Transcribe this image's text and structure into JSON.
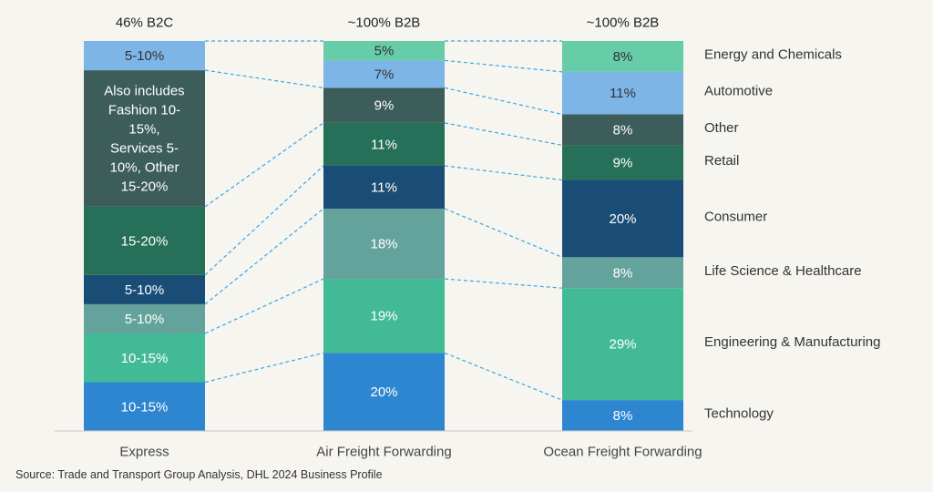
{
  "chart_data": {
    "type": "bar",
    "stacked": true,
    "categories": [
      "Express",
      "Air Freight Forwarding",
      "Ocean Freight Forwarding"
    ],
    "top_labels": [
      "46% B2C",
      "~100% B2B",
      "~100% B2B"
    ],
    "sectors": [
      {
        "name": "Technology",
        "color": "#2e86d0"
      },
      {
        "name": "Engineering & Manufacturing",
        "color": "#43ba96"
      },
      {
        "name": "Life Science & Healthcare",
        "color": "#64a39c"
      },
      {
        "name": "Consumer",
        "color": "#1a4d76"
      },
      {
        "name": "Retail",
        "color": "#266f58"
      },
      {
        "name": "Other",
        "color": "#3c5d5a"
      },
      {
        "name": "Automotive",
        "color": "#7db5e6"
      },
      {
        "name": "Energy and Chemicals",
        "color": "#67cda9"
      }
    ],
    "bars": [
      {
        "category": "Express",
        "segments": [
          {
            "sector": "Technology",
            "value": 12.5,
            "label": "10-15%",
            "label_lines": [
              "10-15%"
            ]
          },
          {
            "sector": "Engineering & Manufacturing",
            "value": 12.5,
            "label": "10-15%",
            "label_lines": [
              "10-15%"
            ]
          },
          {
            "sector": "Life Science & Healthcare",
            "value": 7.5,
            "label": "5-10%",
            "label_lines": [
              "5-10%"
            ]
          },
          {
            "sector": "Consumer",
            "value": 7.5,
            "label": "5-10%",
            "label_lines": [
              "5-10%"
            ]
          },
          {
            "sector": "Retail",
            "value": 17.5,
            "label": "15-20%",
            "label_lines": [
              "15-20%"
            ]
          },
          {
            "sector": "Other",
            "value": 35,
            "label": "Also includes Fashion 10-15%, Services 5-10%, Other 15-20%",
            "label_lines": [
              "Also includes",
              "Fashion 10-",
              "15%,",
              "Services 5-",
              "10%, Other",
              "15-20%"
            ]
          },
          {
            "sector": "Automotive",
            "value": 7.5,
            "label": "5-10%",
            "label_lines": [
              "5-10%"
            ]
          }
        ]
      },
      {
        "category": "Air Freight Forwarding",
        "segments": [
          {
            "sector": "Technology",
            "value": 20,
            "label": "20%",
            "label_lines": [
              "20%"
            ]
          },
          {
            "sector": "Engineering & Manufacturing",
            "value": 19,
            "label": "19%",
            "label_lines": [
              "19%"
            ]
          },
          {
            "sector": "Life Science & Healthcare",
            "value": 18,
            "label": "18%",
            "label_lines": [
              "18%"
            ]
          },
          {
            "sector": "Consumer",
            "value": 11,
            "label": "11%",
            "label_lines": [
              "11%"
            ]
          },
          {
            "sector": "Retail",
            "value": 11,
            "label": "11%",
            "label_lines": [
              "11%"
            ]
          },
          {
            "sector": "Other",
            "value": 9,
            "label": "9%",
            "label_lines": [
              "9%"
            ]
          },
          {
            "sector": "Automotive",
            "value": 7,
            "label": "7%",
            "label_lines": [
              "7%"
            ]
          },
          {
            "sector": "Energy and Chemicals",
            "value": 5,
            "label": "5%",
            "label_lines": [
              "5%"
            ]
          }
        ]
      },
      {
        "category": "Ocean Freight Forwarding",
        "segments": [
          {
            "sector": "Technology",
            "value": 8,
            "label": "8%",
            "label_lines": [
              "8%"
            ]
          },
          {
            "sector": "Engineering & Manufacturing",
            "value": 29,
            "label": "29%",
            "label_lines": [
              "29%"
            ]
          },
          {
            "sector": "Life Science & Healthcare",
            "value": 8,
            "label": "8%",
            "label_lines": [
              "8%"
            ]
          },
          {
            "sector": "Consumer",
            "value": 20,
            "label": "20%",
            "label_lines": [
              "20%"
            ]
          },
          {
            "sector": "Retail",
            "value": 9,
            "label": "9%",
            "label_lines": [
              "9%"
            ]
          },
          {
            "sector": "Other",
            "value": 8,
            "label": "8%",
            "label_lines": [
              "8%"
            ]
          },
          {
            "sector": "Automotive",
            "value": 11,
            "label": "11%",
            "label_lines": [
              "11%"
            ]
          },
          {
            "sector": "Energy and Chemicals",
            "value": 8,
            "label": "8%",
            "label_lines": [
              "8%"
            ]
          }
        ]
      }
    ],
    "connector_color": "#3aa6e0",
    "connector_style": "dashed",
    "legend_placement": "right, beside last bar"
  },
  "source": "Source: Trade and Transport Group Analysis, DHL 2024 Business Profile"
}
